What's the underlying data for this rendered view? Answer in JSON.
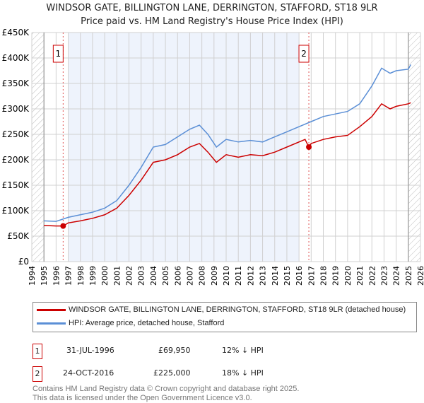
{
  "chart_data": {
    "type": "line",
    "title": "WINDSOR GATE, BILLINGTON LANE, DERRINGTON, STAFFORD, ST18 9LR",
    "subtitle": "Price paid vs. HM Land Registry's House Price Index (HPI)",
    "xlim": [
      1994,
      2026
    ],
    "ylim": [
      0,
      450000
    ],
    "x_ticks": [
      1994,
      1995,
      1996,
      1997,
      1998,
      1999,
      2000,
      2001,
      2002,
      2003,
      2004,
      2005,
      2006,
      2007,
      2008,
      2009,
      2010,
      2011,
      2012,
      2013,
      2014,
      2015,
      2016,
      2017,
      2018,
      2019,
      2020,
      2021,
      2022,
      2023,
      2024,
      2025,
      2026
    ],
    "y_ticks": [
      {
        "v": 0,
        "l": "£0"
      },
      {
        "v": 50000,
        "l": "£50K"
      },
      {
        "v": 100000,
        "l": "£100K"
      },
      {
        "v": 150000,
        "l": "£150K"
      },
      {
        "v": 200000,
        "l": "£200K"
      },
      {
        "v": 250000,
        "l": "£250K"
      },
      {
        "v": 300000,
        "l": "£300K"
      },
      {
        "v": 350000,
        "l": "£350K"
      },
      {
        "v": 400000,
        "l": "£400K"
      },
      {
        "v": 450000,
        "l": "£450K"
      }
    ],
    "grid": true,
    "series": [
      {
        "name": "WINDSOR GATE, BILLINGTON LANE, DERRINGTON, STAFFORD, ST18 9LR (detached house)",
        "color": "#cc0000",
        "x": [
          1995,
          1996,
          1996.58,
          1997,
          1998,
          1999,
          2000,
          2001,
          2002,
          2003,
          2004,
          2005,
          2006,
          2007,
          2007.8,
          2008.5,
          2009.2,
          2010,
          2011,
          2012,
          2013,
          2014,
          2015,
          2016.5,
          2016.81,
          2017,
          2018,
          2019,
          2020,
          2021,
          2022,
          2022.8,
          2023.5,
          2024,
          2025,
          2025.2
        ],
        "y": [
          71000,
          70000,
          69950,
          76000,
          80000,
          85000,
          92000,
          105000,
          130000,
          160000,
          195000,
          200000,
          210000,
          225000,
          232000,
          215000,
          195000,
          210000,
          205000,
          210000,
          208000,
          215000,
          225000,
          240000,
          225000,
          232000,
          240000,
          245000,
          248000,
          265000,
          285000,
          310000,
          300000,
          305000,
          310000,
          312000
        ]
      },
      {
        "name": "HPI: Average price, detached house, Stafford",
        "color": "#5b8fd6",
        "x": [
          1995,
          1996,
          1997,
          1998,
          1999,
          2000,
          2001,
          2002,
          2003,
          2004,
          2005,
          2006,
          2007,
          2007.8,
          2008.5,
          2009.2,
          2010,
          2011,
          2012,
          2013,
          2014,
          2015,
          2016,
          2017,
          2018,
          2019,
          2020,
          2021,
          2022,
          2022.8,
          2023.5,
          2024,
          2025,
          2025.2
        ],
        "y": [
          80000,
          79000,
          87000,
          92000,
          97000,
          105000,
          120000,
          150000,
          185000,
          225000,
          230000,
          245000,
          260000,
          268000,
          250000,
          225000,
          240000,
          235000,
          238000,
          235000,
          245000,
          255000,
          265000,
          275000,
          285000,
          290000,
          295000,
          310000,
          345000,
          380000,
          370000,
          375000,
          378000,
          387000
        ]
      }
    ],
    "annotations": [
      {
        "label": "1",
        "x": 1996.58,
        "y": 69950
      },
      {
        "label": "2",
        "x": 2016.81,
        "y": 225000
      }
    ],
    "legend_position": "below"
  },
  "sales": [
    {
      "n": "1",
      "date": "31-JUL-1996",
      "price": "£69,950",
      "hpi": "12% ↓ HPI"
    },
    {
      "n": "2",
      "date": "24-OCT-2016",
      "price": "£225,000",
      "hpi": "18% ↓ HPI"
    }
  ],
  "footer": [
    "Contains HM Land Registry data © Crown copyright and database right 2025.",
    "This data is licensed under the Open Government Licence v3.0."
  ]
}
